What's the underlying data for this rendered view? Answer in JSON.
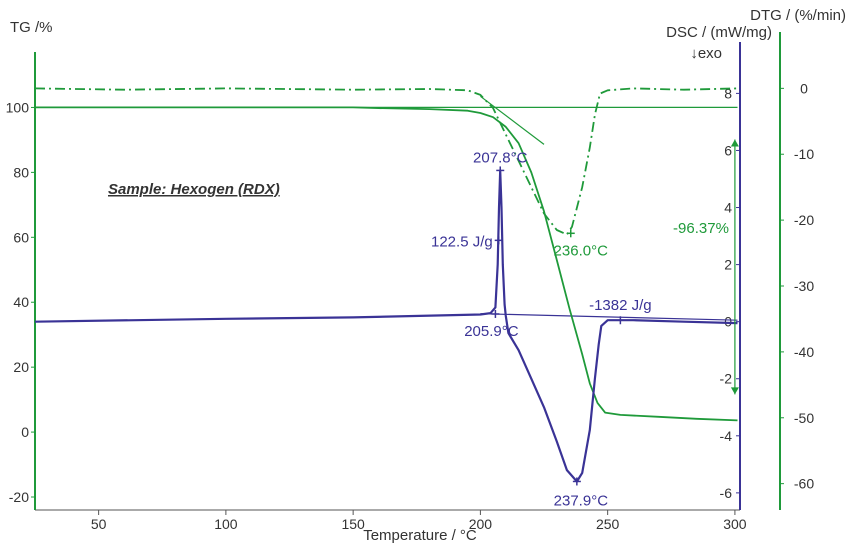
{
  "chart_data": {
    "type": "line",
    "sample_label": "Sample: Hexogen (RDX)",
    "xlabel": "Temperature / °C",
    "x_ticks": [
      50,
      100,
      150,
      200,
      250,
      300
    ],
    "xlim": [
      25,
      302
    ],
    "axes": {
      "tg": {
        "label": "TG /%",
        "ticks": [
          -20,
          0,
          20,
          40,
          60,
          80,
          100
        ],
        "range": [
          -24,
          114
        ]
      },
      "dsc": {
        "label": "DSC / (mW/mg)",
        "ticks": [
          -6,
          -4,
          -2,
          0,
          2,
          4,
          6,
          8
        ],
        "range": [
          -6.6,
          9.1
        ]
      },
      "dtg": {
        "label": "DTG / (%/min)",
        "ticks": [
          0,
          -10,
          -20,
          -30,
          -40,
          -50,
          -60
        ],
        "range": [
          -64,
          4
        ]
      }
    },
    "exo_label": "↓exo",
    "colors": {
      "tg": "#1f9a3a",
      "dtg": "#1f9a3a",
      "dsc": "#3a3396",
      "axis": "#555555"
    },
    "series": [
      {
        "key": "tg",
        "axis": "tg",
        "style": "solid",
        "points": [
          [
            25,
            100
          ],
          [
            150,
            100
          ],
          [
            160,
            99.8
          ],
          [
            180,
            99.5
          ],
          [
            195,
            99
          ],
          [
            200,
            98.3
          ],
          [
            205,
            97
          ],
          [
            210,
            94
          ],
          [
            215,
            89
          ],
          [
            220,
            80
          ],
          [
            225,
            68
          ],
          [
            230,
            53
          ],
          [
            235,
            38
          ],
          [
            240,
            24
          ],
          [
            243,
            15
          ],
          [
            246,
            9
          ],
          [
            249,
            6
          ],
          [
            255,
            5.3
          ],
          [
            270,
            4.7
          ],
          [
            285,
            4.1
          ],
          [
            301,
            3.6
          ]
        ]
      },
      {
        "key": "dtg",
        "axis": "dtg",
        "style": "dashed",
        "points": [
          [
            25,
            0
          ],
          [
            60,
            -0.2
          ],
          [
            100,
            0
          ],
          [
            150,
            -0.2
          ],
          [
            180,
            -0.1
          ],
          [
            195,
            -0.3
          ],
          [
            200,
            -1
          ],
          [
            205,
            -3
          ],
          [
            210,
            -7
          ],
          [
            215,
            -11
          ],
          [
            220,
            -15
          ],
          [
            225,
            -19
          ],
          [
            230,
            -21.5
          ],
          [
            234,
            -22.2
          ],
          [
            236,
            -21
          ],
          [
            240,
            -15
          ],
          [
            243,
            -9
          ],
          [
            245,
            -4
          ],
          [
            247,
            -0.8
          ],
          [
            250,
            -0.3
          ],
          [
            260,
            0
          ],
          [
            280,
            -0.2
          ],
          [
            301,
            0
          ]
        ]
      },
      {
        "key": "dsc",
        "axis": "dsc",
        "style": "solid",
        "points": [
          [
            25,
            0
          ],
          [
            100,
            0.1
          ],
          [
            150,
            0.15
          ],
          [
            200,
            0.25
          ],
          [
            204,
            0.3
          ],
          [
            205.9,
            0.5
          ],
          [
            206.8,
            2
          ],
          [
            207.3,
            4
          ],
          [
            207.8,
            5.3
          ],
          [
            208.3,
            4
          ],
          [
            208.8,
            2
          ],
          [
            209.5,
            0.6
          ],
          [
            210,
            0.2
          ],
          [
            211,
            -0.4
          ],
          [
            215,
            -1
          ],
          [
            220,
            -2
          ],
          [
            225,
            -3
          ],
          [
            230,
            -4.2
          ],
          [
            234,
            -5.2
          ],
          [
            237.9,
            -5.6
          ],
          [
            240,
            -5.3
          ],
          [
            243,
            -3.8
          ],
          [
            245,
            -2
          ],
          [
            246.5,
            -0.8
          ],
          [
            247.5,
            -0.15
          ],
          [
            250,
            0.05
          ],
          [
            260,
            0.05
          ],
          [
            280,
            0
          ],
          [
            301,
            -0.05
          ]
        ]
      }
    ],
    "baselines": [
      {
        "axis": "tg",
        "points": [
          [
            25,
            100
          ],
          [
            301,
            100
          ]
        ]
      },
      {
        "axis": "dsc",
        "points": [
          [
            200,
            0.28
          ],
          [
            301,
            0.05
          ]
        ]
      },
      {
        "axis": "dtg",
        "points": [
          [
            200,
            -1.2
          ],
          [
            225,
            -8.5
          ]
        ]
      }
    ],
    "annotations": [
      {
        "text": "207.8°C",
        "x": 207.8,
        "y": 5.3,
        "axis": "dsc",
        "color": "dsc",
        "dx": 0,
        "dy": -8,
        "anchor": "middle",
        "marker": true
      },
      {
        "text": "122.5 J/g",
        "x": 207.2,
        "y": 2.85,
        "axis": "dsc",
        "color": "dsc",
        "dx": -6,
        "dy": 6,
        "anchor": "end",
        "marker": true
      },
      {
        "text": "205.9°C",
        "x": 205.9,
        "y": 0.27,
        "axis": "dsc",
        "color": "dsc",
        "dx": -4,
        "dy": 22,
        "anchor": "middle",
        "marker": true
      },
      {
        "text": "-1382 J/g",
        "x": 255,
        "y": 0.05,
        "axis": "dsc",
        "color": "dsc",
        "dx": 0,
        "dy": -10,
        "anchor": "middle",
        "marker": true
      },
      {
        "text": "237.9°C",
        "x": 237.9,
        "y": -5.6,
        "axis": "dsc",
        "color": "dsc",
        "dx": 4,
        "dy": 24,
        "anchor": "middle",
        "marker": true
      },
      {
        "text": "236.0°C",
        "x": 235.5,
        "y": -22,
        "axis": "dtg",
        "color": "dtg",
        "dx": 10,
        "dy": 22,
        "anchor": "middle",
        "marker": true
      }
    ],
    "mass_change": {
      "text": "-96.37%",
      "x": 300,
      "y_top": 100,
      "y_bottom": 3.6,
      "axis": "tg"
    }
  }
}
